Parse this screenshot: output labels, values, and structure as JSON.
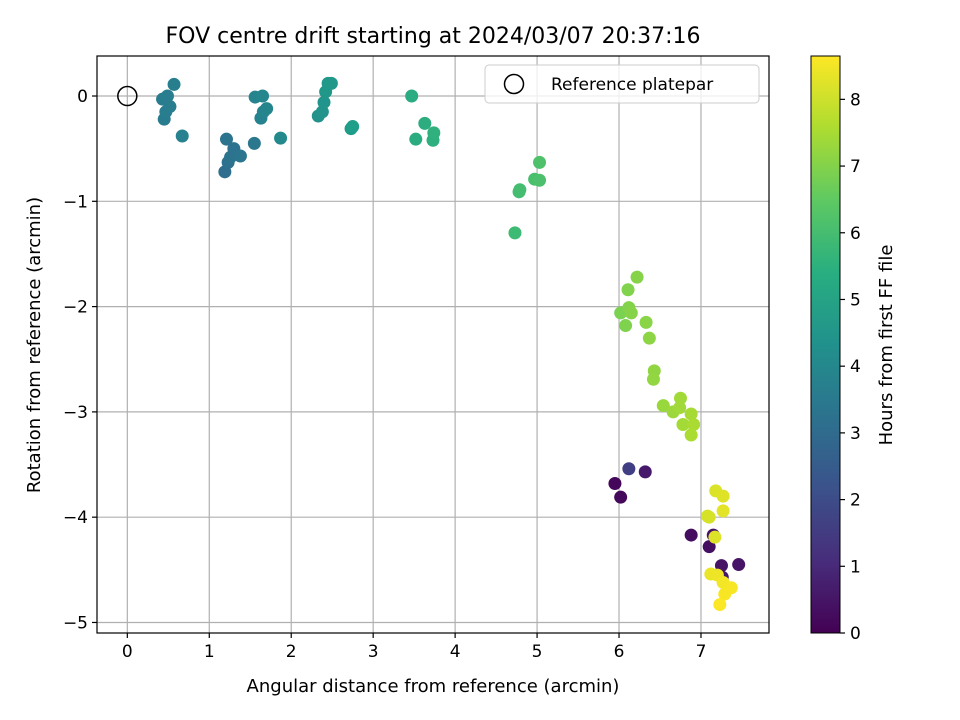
{
  "chart_data": {
    "type": "scatter",
    "title": "FOV centre drift starting at 2024/03/07 20:37:16",
    "xlabel": "Angular distance from reference (arcmin)",
    "ylabel": "Rotation from reference (arcmin)",
    "xlim": [
      -0.37,
      7.83
    ],
    "ylim": [
      -5.1,
      0.38
    ],
    "xticks": [
      0,
      1,
      2,
      3,
      4,
      5,
      6,
      7
    ],
    "yticks": [
      0,
      -1,
      -2,
      -3,
      -4,
      -5
    ],
    "grid": true,
    "legend": {
      "placement": "top-right",
      "label": "Reference platepar"
    },
    "reference_point": {
      "x": 0,
      "y": 0
    },
    "colorbar": {
      "label": "Hours from first FF file",
      "range": [
        0,
        8.65
      ],
      "ticks": [
        0,
        1,
        2,
        3,
        4,
        5,
        6,
        7,
        8
      ],
      "colormap": "viridis"
    },
    "points": [
      {
        "x": 5.95,
        "y": -3.68,
        "t": 0.15
      },
      {
        "x": 6.02,
        "y": -3.81,
        "t": 0.2
      },
      {
        "x": 6.88,
        "y": -4.17,
        "t": 0.3
      },
      {
        "x": 7.1,
        "y": -4.28,
        "t": 0.35
      },
      {
        "x": 7.15,
        "y": -4.17,
        "t": 0.4
      },
      {
        "x": 7.25,
        "y": -4.46,
        "t": 0.45
      },
      {
        "x": 7.46,
        "y": -4.45,
        "t": 0.5
      },
      {
        "x": 7.26,
        "y": -4.57,
        "t": 0.55
      },
      {
        "x": 6.32,
        "y": -3.57,
        "t": 0.6
      },
      {
        "x": 6.12,
        "y": -3.54,
        "t": 1.6
      },
      {
        "x": 1.19,
        "y": -0.72,
        "t": 3.1
      },
      {
        "x": 1.23,
        "y": -0.63,
        "t": 3.2
      },
      {
        "x": 1.26,
        "y": -0.58,
        "t": 3.3
      },
      {
        "x": 1.3,
        "y": -0.5,
        "t": 3.25
      },
      {
        "x": 1.38,
        "y": -0.57,
        "t": 3.35
      },
      {
        "x": 1.21,
        "y": -0.41,
        "t": 3.3
      },
      {
        "x": 1.55,
        "y": -0.45,
        "t": 3.45
      },
      {
        "x": 0.45,
        "y": -0.22,
        "t": 3.6
      },
      {
        "x": 0.47,
        "y": -0.15,
        "t": 3.65
      },
      {
        "x": 0.52,
        "y": -0.1,
        "t": 3.7
      },
      {
        "x": 0.43,
        "y": -0.03,
        "t": 3.62
      },
      {
        "x": 0.49,
        "y": 0.0,
        "t": 3.68
      },
      {
        "x": 0.57,
        "y": 0.11,
        "t": 3.75
      },
      {
        "x": 0.67,
        "y": -0.38,
        "t": 3.8
      },
      {
        "x": 1.63,
        "y": -0.21,
        "t": 3.85
      },
      {
        "x": 1.66,
        "y": -0.15,
        "t": 3.9
      },
      {
        "x": 1.7,
        "y": -0.12,
        "t": 3.95
      },
      {
        "x": 1.56,
        "y": -0.01,
        "t": 3.9
      },
      {
        "x": 1.65,
        "y": 0.0,
        "t": 3.97
      },
      {
        "x": 1.87,
        "y": -0.4,
        "t": 4.1
      },
      {
        "x": 2.33,
        "y": -0.19,
        "t": 4.4
      },
      {
        "x": 2.38,
        "y": -0.15,
        "t": 4.45
      },
      {
        "x": 2.4,
        "y": -0.06,
        "t": 4.5
      },
      {
        "x": 2.42,
        "y": 0.04,
        "t": 4.55
      },
      {
        "x": 2.45,
        "y": 0.12,
        "t": 4.6
      },
      {
        "x": 2.49,
        "y": 0.12,
        "t": 4.62
      },
      {
        "x": 2.73,
        "y": -0.31,
        "t": 4.75
      },
      {
        "x": 2.75,
        "y": -0.29,
        "t": 4.8
      },
      {
        "x": 3.47,
        "y": 0.0,
        "t": 5.3
      },
      {
        "x": 3.52,
        "y": -0.41,
        "t": 5.35
      },
      {
        "x": 3.63,
        "y": -0.26,
        "t": 5.4
      },
      {
        "x": 3.73,
        "y": -0.42,
        "t": 5.45
      },
      {
        "x": 3.74,
        "y": -0.35,
        "t": 5.5
      },
      {
        "x": 4.73,
        "y": -1.3,
        "t": 5.9
      },
      {
        "x": 4.78,
        "y": -0.91,
        "t": 6.0
      },
      {
        "x": 4.79,
        "y": -0.89,
        "t": 6.02
      },
      {
        "x": 4.97,
        "y": -0.79,
        "t": 6.1
      },
      {
        "x": 5.03,
        "y": -0.8,
        "t": 6.15
      },
      {
        "x": 5.03,
        "y": -0.63,
        "t": 6.2
      },
      {
        "x": 6.02,
        "y": -2.06,
        "t": 6.9
      },
      {
        "x": 6.08,
        "y": -2.18,
        "t": 6.95
      },
      {
        "x": 6.12,
        "y": -2.01,
        "t": 7.0
      },
      {
        "x": 6.15,
        "y": -2.06,
        "t": 7.05
      },
      {
        "x": 6.11,
        "y": -1.84,
        "t": 6.98
      },
      {
        "x": 6.22,
        "y": -1.72,
        "t": 7.05
      },
      {
        "x": 6.33,
        "y": -2.15,
        "t": 7.1
      },
      {
        "x": 6.37,
        "y": -2.3,
        "t": 7.15
      },
      {
        "x": 6.43,
        "y": -2.61,
        "t": 7.2
      },
      {
        "x": 6.42,
        "y": -2.69,
        "t": 7.22
      },
      {
        "x": 6.54,
        "y": -2.94,
        "t": 7.3
      },
      {
        "x": 6.66,
        "y": -3.0,
        "t": 7.35
      },
      {
        "x": 6.74,
        "y": -2.96,
        "t": 7.4
      },
      {
        "x": 6.75,
        "y": -2.87,
        "t": 7.42
      },
      {
        "x": 6.78,
        "y": -3.12,
        "t": 7.45
      },
      {
        "x": 6.88,
        "y": -3.02,
        "t": 7.5
      },
      {
        "x": 6.91,
        "y": -3.12,
        "t": 7.52
      },
      {
        "x": 6.88,
        "y": -3.22,
        "t": 7.55
      },
      {
        "x": 7.08,
        "y": -3.99,
        "t": 8.1
      },
      {
        "x": 7.1,
        "y": -4.0,
        "t": 8.12
      },
      {
        "x": 7.18,
        "y": -3.75,
        "t": 8.2
      },
      {
        "x": 7.27,
        "y": -3.8,
        "t": 8.25
      },
      {
        "x": 7.27,
        "y": -3.94,
        "t": 8.3
      },
      {
        "x": 7.17,
        "y": -4.19,
        "t": 8.22
      },
      {
        "x": 7.12,
        "y": -4.54,
        "t": 8.4
      },
      {
        "x": 7.2,
        "y": -4.55,
        "t": 8.45
      },
      {
        "x": 7.27,
        "y": -4.62,
        "t": 8.5
      },
      {
        "x": 7.37,
        "y": -4.67,
        "t": 8.55
      },
      {
        "x": 7.29,
        "y": -4.73,
        "t": 8.58
      },
      {
        "x": 7.23,
        "y": -4.83,
        "t": 8.62
      }
    ]
  }
}
